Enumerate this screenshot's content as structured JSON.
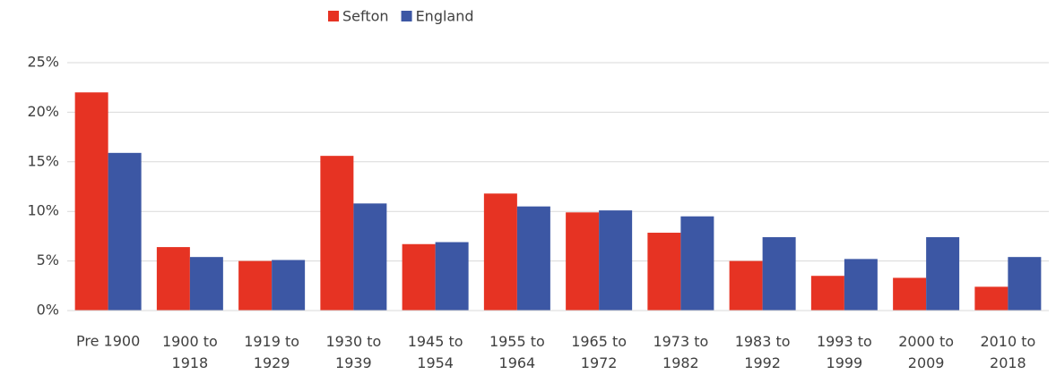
{
  "chart_data": {
    "type": "bar",
    "categories": [
      "Pre 1900",
      "1900 to 1918",
      "1919 to 1929",
      "1930 to 1939",
      "1945 to 1954",
      "1955 to 1964",
      "1965 to 1972",
      "1973 to 1982",
      "1983 to 1992",
      "1993 to 1999",
      "2000 to 2009",
      "2010 to 2018"
    ],
    "series": [
      {
        "name": "Sefton",
        "color": "#e63323",
        "values": [
          22.0,
          6.4,
          5.0,
          15.6,
          6.7,
          11.8,
          9.9,
          7.85,
          5.0,
          3.5,
          3.3,
          2.4
        ]
      },
      {
        "name": "England",
        "color": "#3c57a4",
        "values": [
          15.9,
          5.4,
          5.1,
          10.8,
          6.9,
          10.5,
          10.1,
          9.5,
          7.4,
          5.2,
          7.4,
          5.4
        ]
      }
    ],
    "ylim": [
      0,
      25
    ],
    "yticks": [
      {
        "value": 0,
        "label": "0%"
      },
      {
        "value": 5,
        "label": "5%"
      },
      {
        "value": 10,
        "label": "10%"
      },
      {
        "value": 15,
        "label": "15%"
      },
      {
        "value": 20,
        "label": "20%"
      },
      {
        "value": 25,
        "label": "25%"
      }
    ],
    "grid": true,
    "legend": "top"
  }
}
